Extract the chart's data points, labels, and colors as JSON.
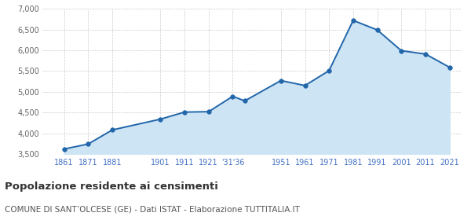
{
  "years": [
    1861,
    1871,
    1881,
    1901,
    1911,
    1921,
    1931,
    1936,
    1951,
    1961,
    1971,
    1981,
    1991,
    2001,
    2011,
    2021
  ],
  "population": [
    3620,
    3740,
    4080,
    4340,
    4510,
    4520,
    4890,
    4780,
    5270,
    5150,
    5510,
    6720,
    6490,
    5990,
    5910,
    5590
  ],
  "line_color": "#2266aa",
  "fill_color": "#cde4f5",
  "marker_size": 4,
  "marker_face_color": "#2266aa",
  "grid_color": "#cccccc",
  "ylim": [
    3500,
    7000
  ],
  "yticks": [
    3500,
    4000,
    4500,
    5000,
    5500,
    6000,
    6500,
    7000
  ],
  "ytick_labels": [
    "3,500",
    "4,000",
    "4,500",
    "5,000",
    "5,500",
    "6,000",
    "6,500",
    "7,000"
  ],
  "x_tick_positions": [
    1861,
    1871,
    1881,
    1901,
    1911,
    1921,
    1931,
    1951,
    1961,
    1971,
    1981,
    1991,
    2001,
    2011,
    2021
  ],
  "x_tick_labels": [
    "1861",
    "1871",
    "1881",
    "1901",
    "1911",
    "1921",
    "'31'36",
    "1951",
    "1961",
    "1971",
    "1981",
    "1991",
    "2001",
    "2011",
    "2021"
  ],
  "xlim": [
    1852,
    2026
  ],
  "title": "Popolazione residente ai censimenti",
  "subtitle": "COMUNE DI SANT’OLCESE (GE) - Dati ISTAT - Elaborazione TUTTITALIA.IT",
  "title_fontsize": 9.5,
  "subtitle_fontsize": 7.5,
  "tick_color": "#4472c4",
  "ytick_color": "#666666"
}
